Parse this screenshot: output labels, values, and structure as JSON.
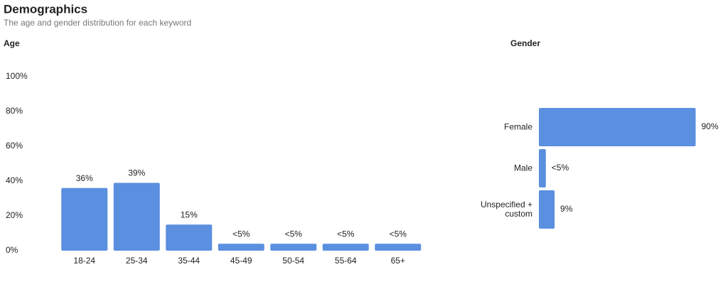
{
  "title": "Demographics",
  "subtitle": "The age and gender distribution for each keyword",
  "chart_data": [
    {
      "type": "bar",
      "title": "Age",
      "categories": [
        "18-24",
        "25-34",
        "35-44",
        "45-49",
        "50-54",
        "55-64",
        "65+"
      ],
      "values": [
        36,
        39,
        15,
        4,
        4,
        4,
        4
      ],
      "value_labels": [
        "36%",
        "39%",
        "15%",
        "<5%",
        "<5%",
        "<5%",
        "<5%"
      ],
      "color": "#5b8fdf",
      "ylim": [
        0,
        100
      ],
      "yticks": [
        {
          "value": 0,
          "label": "0%"
        },
        {
          "value": 20,
          "label": "20%"
        },
        {
          "value": 40,
          "label": "40%"
        },
        {
          "value": 60,
          "label": "60%"
        },
        {
          "value": 80,
          "label": "80%"
        },
        {
          "value": 100,
          "label": "100%"
        }
      ],
      "grid": false
    },
    {
      "type": "hbar",
      "title": "Gender",
      "categories": [
        "Female",
        "Male",
        "Unspecified + custom"
      ],
      "values": [
        90,
        4,
        9
      ],
      "value_labels": [
        "90%",
        "<5%",
        "9%"
      ],
      "color": "#5b8fdf",
      "xlim": [
        0,
        100
      ]
    }
  ]
}
